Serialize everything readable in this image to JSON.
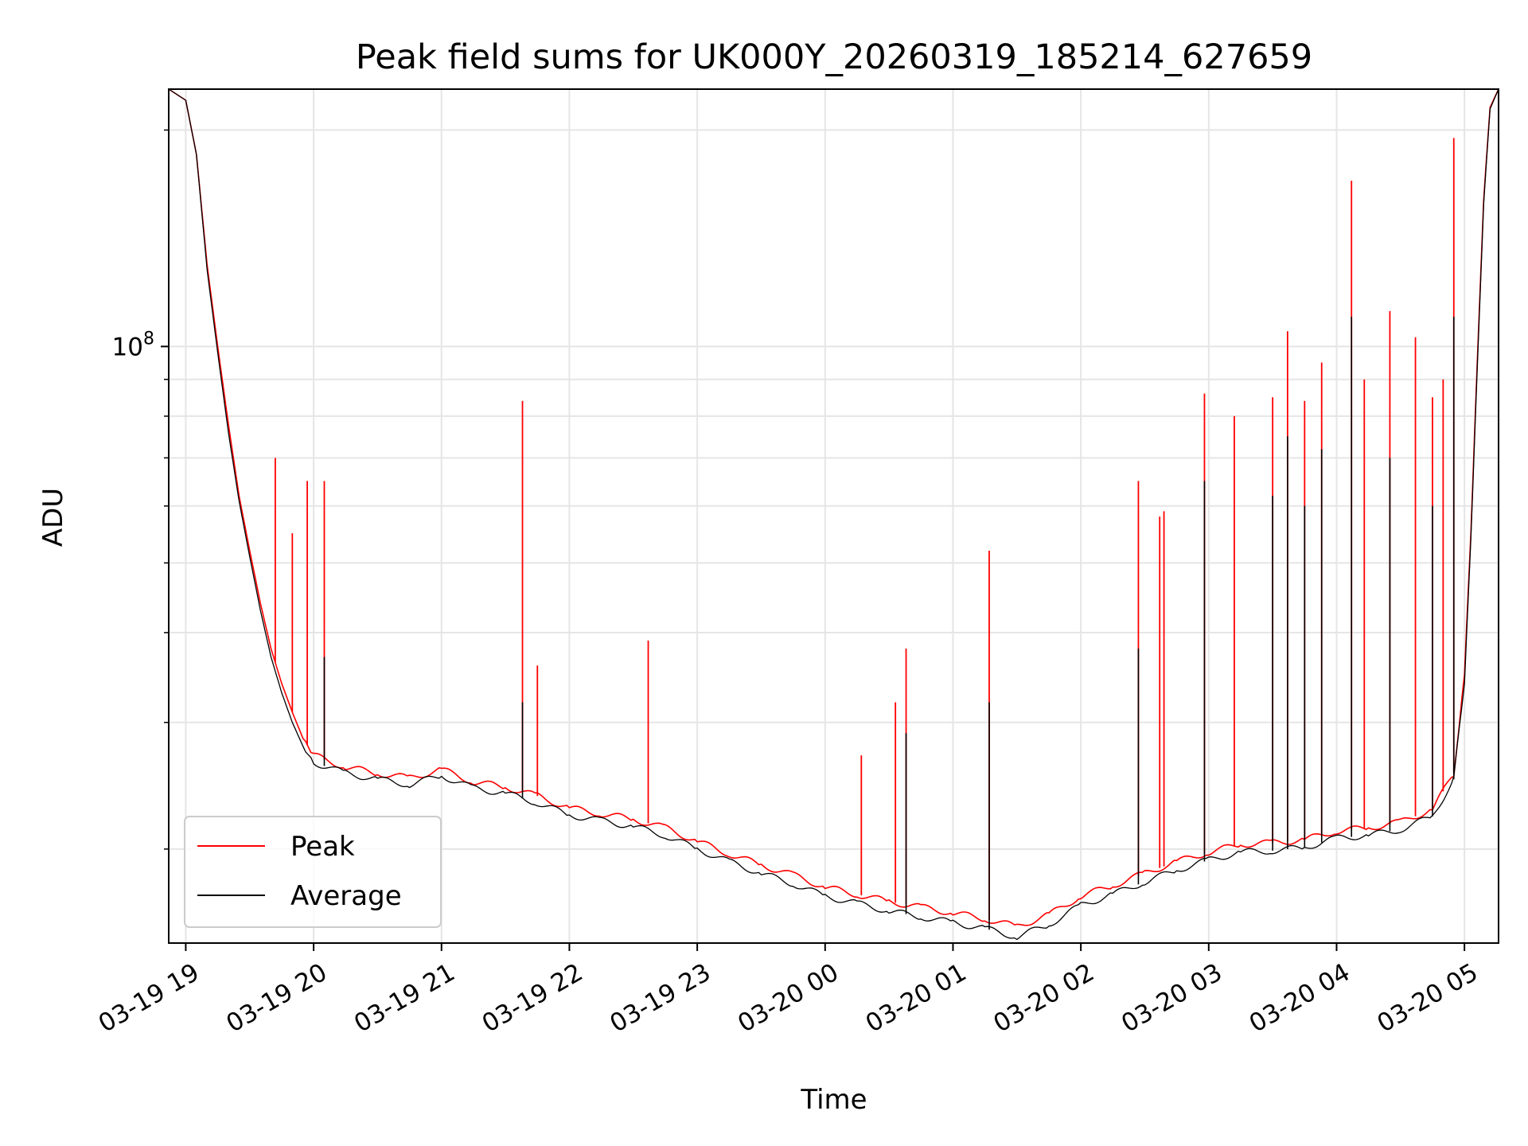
{
  "chart_data": {
    "type": "line",
    "title": "Peak field sums for UK000Y_20260319_185214_627659",
    "xlabel": "Time",
    "ylabel": "ADU",
    "y_scale": "log",
    "ylim": [
      14800000,
      228000000
    ],
    "xlim": [
      "2026-03-19 18:52",
      "2026-03-20 05:16"
    ],
    "x_tick_labels": [
      "03-19 19",
      "03-19 20",
      "03-19 21",
      "03-19 22",
      "03-19 23",
      "03-20 00",
      "03-20 01",
      "03-20 02",
      "03-20 03",
      "03-20 04",
      "03-20 05"
    ],
    "x_ticks": [
      "2026-03-19 19:00",
      "2026-03-19 20:00",
      "2026-03-19 21:00",
      "2026-03-19 22:00",
      "2026-03-19 23:00",
      "2026-03-20 00:00",
      "2026-03-20 01:00",
      "2026-03-20 02:00",
      "2026-03-20 03:00",
      "2026-03-20 04:00",
      "2026-03-20 05:00"
    ],
    "y_tick_label": "10",
    "y_tick_exponent": "8",
    "y_major_tick_value": 100000000,
    "grid": true,
    "legend": "lower-left",
    "series": [
      {
        "name": "Peak",
        "color": "#ff0000",
        "points": [
          [
            "2026-03-19 18:52",
            228000000
          ],
          [
            "2026-03-19 19:00",
            220000000
          ],
          [
            "2026-03-19 19:05",
            185000000
          ],
          [
            "2026-03-19 19:10",
            130000000
          ],
          [
            "2026-03-19 19:15",
            100000000
          ],
          [
            "2026-03-19 19:20",
            78000000
          ],
          [
            "2026-03-19 19:25",
            62000000
          ],
          [
            "2026-03-19 19:30",
            52000000
          ],
          [
            "2026-03-19 19:35",
            44000000
          ],
          [
            "2026-03-19 19:40",
            38000000
          ],
          [
            "2026-03-19 19:45",
            34000000
          ],
          [
            "2026-03-19 19:50",
            31000000
          ],
          [
            "2026-03-19 19:55",
            28500000
          ],
          [
            "2026-03-19 20:00",
            27000000
          ],
          [
            "2026-03-19 20:15",
            26000000
          ],
          [
            "2026-03-19 20:30",
            25500000
          ],
          [
            "2026-03-19 20:45",
            25100000
          ],
          [
            "2026-03-19 21:00",
            25800000
          ],
          [
            "2026-03-19 21:15",
            24800000
          ],
          [
            "2026-03-19 21:30",
            24400000
          ],
          [
            "2026-03-19 21:45",
            23700000
          ],
          [
            "2026-03-19 22:00",
            22800000
          ],
          [
            "2026-03-19 22:15",
            22400000
          ],
          [
            "2026-03-19 22:30",
            22000000
          ],
          [
            "2026-03-19 22:45",
            21400000
          ],
          [
            "2026-03-19 23:00",
            20500000
          ],
          [
            "2026-03-19 23:15",
            19700000
          ],
          [
            "2026-03-19 23:30",
            19000000
          ],
          [
            "2026-03-19 23:45",
            18400000
          ],
          [
            "2026-03-20 00:00",
            17700000
          ],
          [
            "2026-03-20 00:15",
            17300000
          ],
          [
            "2026-03-20 00:30",
            16900000
          ],
          [
            "2026-03-20 00:45",
            16600000
          ],
          [
            "2026-03-20 01:00",
            16300000
          ],
          [
            "2026-03-20 01:15",
            16000000
          ],
          [
            "2026-03-20 01:30",
            15600000
          ],
          [
            "2026-03-20 01:45",
            16200000
          ],
          [
            "2026-03-20 02:00",
            17200000
          ],
          [
            "2026-03-20 02:15",
            17800000
          ],
          [
            "2026-03-20 02:30",
            18500000
          ],
          [
            "2026-03-20 02:45",
            19200000
          ],
          [
            "2026-03-20 03:00",
            19800000
          ],
          [
            "2026-03-20 03:15",
            20300000
          ],
          [
            "2026-03-20 03:30",
            20400000
          ],
          [
            "2026-03-20 03:45",
            20600000
          ],
          [
            "2026-03-20 04:00",
            21200000
          ],
          [
            "2026-03-20 04:15",
            21400000
          ],
          [
            "2026-03-20 04:30",
            21800000
          ],
          [
            "2026-03-20 04:45",
            22700000
          ],
          [
            "2026-03-20 04:55",
            25500000
          ],
          [
            "2026-03-20 05:00",
            35000000
          ],
          [
            "2026-03-20 05:03",
            55000000
          ],
          [
            "2026-03-20 05:06",
            95000000
          ],
          [
            "2026-03-20 05:09",
            160000000
          ],
          [
            "2026-03-20 05:12",
            215000000
          ],
          [
            "2026-03-20 05:16",
            228000000
          ]
        ],
        "spikes": [
          [
            "2026-03-19 19:42",
            70000000
          ],
          [
            "2026-03-19 19:50",
            55000000
          ],
          [
            "2026-03-19 19:57",
            65000000
          ],
          [
            "2026-03-19 20:05",
            65000000
          ],
          [
            "2026-03-19 21:38",
            84000000
          ],
          [
            "2026-03-19 21:45",
            36000000
          ],
          [
            "2026-03-19 22:37",
            39000000
          ],
          [
            "2026-03-20 00:17",
            27000000
          ],
          [
            "2026-03-20 00:33",
            32000000
          ],
          [
            "2026-03-20 00:38",
            38000000
          ],
          [
            "2026-03-20 01:17",
            52000000
          ],
          [
            "2026-03-20 02:27",
            65000000
          ],
          [
            "2026-03-20 02:37",
            58000000
          ],
          [
            "2026-03-20 02:39",
            59000000
          ],
          [
            "2026-03-20 02:58",
            86000000
          ],
          [
            "2026-03-20 03:12",
            80000000
          ],
          [
            "2026-03-20 03:30",
            85000000
          ],
          [
            "2026-03-20 03:37",
            105000000
          ],
          [
            "2026-03-20 03:45",
            84000000
          ],
          [
            "2026-03-20 03:53",
            95000000
          ],
          [
            "2026-03-20 04:07",
            170000000
          ],
          [
            "2026-03-20 04:13",
            90000000
          ],
          [
            "2026-03-20 04:25",
            112000000
          ],
          [
            "2026-03-20 04:37",
            103000000
          ],
          [
            "2026-03-20 04:45",
            85000000
          ],
          [
            "2026-03-20 04:50",
            90000000
          ],
          [
            "2026-03-20 04:55",
            195000000
          ]
        ]
      },
      {
        "name": "Average",
        "color": "#000000",
        "points": [
          [
            "2026-03-19 18:52",
            228000000
          ],
          [
            "2026-03-19 19:00",
            220000000
          ],
          [
            "2026-03-19 19:05",
            185000000
          ],
          [
            "2026-03-19 19:10",
            128000000
          ],
          [
            "2026-03-19 19:15",
            98000000
          ],
          [
            "2026-03-19 19:20",
            76000000
          ],
          [
            "2026-03-19 19:25",
            61000000
          ],
          [
            "2026-03-19 19:30",
            51000000
          ],
          [
            "2026-03-19 19:35",
            43000000
          ],
          [
            "2026-03-19 19:40",
            37000000
          ],
          [
            "2026-03-19 19:45",
            33000000
          ],
          [
            "2026-03-19 19:50",
            30000000
          ],
          [
            "2026-03-19 19:55",
            27800000
          ],
          [
            "2026-03-19 20:00",
            26400000
          ],
          [
            "2026-03-19 20:15",
            25500000
          ],
          [
            "2026-03-19 20:30",
            25000000
          ],
          [
            "2026-03-19 20:45",
            24600000
          ],
          [
            "2026-03-19 21:00",
            25300000
          ],
          [
            "2026-03-19 21:15",
            24300000
          ],
          [
            "2026-03-19 21:30",
            23900000
          ],
          [
            "2026-03-19 21:45",
            23200000
          ],
          [
            "2026-03-19 22:00",
            22300000
          ],
          [
            "2026-03-19 22:15",
            21900000
          ],
          [
            "2026-03-19 22:30",
            21500000
          ],
          [
            "2026-03-19 22:45",
            20900000
          ],
          [
            "2026-03-19 23:00",
            20000000
          ],
          [
            "2026-03-19 23:15",
            19200000
          ],
          [
            "2026-03-19 23:30",
            18500000
          ],
          [
            "2026-03-19 23:45",
            17900000
          ],
          [
            "2026-03-20 00:00",
            17200000
          ],
          [
            "2026-03-20 00:15",
            16800000
          ],
          [
            "2026-03-20 00:30",
            16400000
          ],
          [
            "2026-03-20 00:45",
            16100000
          ],
          [
            "2026-03-20 01:00",
            15800000
          ],
          [
            "2026-03-20 01:15",
            15500000
          ],
          [
            "2026-03-20 01:30",
            15100000
          ],
          [
            "2026-03-20 01:45",
            15700000
          ],
          [
            "2026-03-20 02:00",
            16700000
          ],
          [
            "2026-03-20 02:15",
            17300000
          ],
          [
            "2026-03-20 02:30",
            18000000
          ],
          [
            "2026-03-20 02:45",
            18700000
          ],
          [
            "2026-03-20 03:00",
            19300000
          ],
          [
            "2026-03-20 03:15",
            19800000
          ],
          [
            "2026-03-20 03:30",
            19900000
          ],
          [
            "2026-03-20 03:45",
            20100000
          ],
          [
            "2026-03-20 04:00",
            20700000
          ],
          [
            "2026-03-20 04:15",
            20900000
          ],
          [
            "2026-03-20 04:30",
            21300000
          ],
          [
            "2026-03-20 04:45",
            22200000
          ],
          [
            "2026-03-20 04:55",
            25000000
          ],
          [
            "2026-03-20 05:00",
            34000000
          ],
          [
            "2026-03-20 05:03",
            54000000
          ],
          [
            "2026-03-20 05:06",
            93000000
          ],
          [
            "2026-03-20 05:09",
            158000000
          ],
          [
            "2026-03-20 05:12",
            214000000
          ],
          [
            "2026-03-20 05:16",
            228000000
          ]
        ],
        "spikes": [
          [
            "2026-03-19 20:05",
            37000000
          ],
          [
            "2026-03-19 21:38",
            32000000
          ],
          [
            "2026-03-20 00:38",
            29000000
          ],
          [
            "2026-03-20 01:17",
            32000000
          ],
          [
            "2026-03-20 02:27",
            38000000
          ],
          [
            "2026-03-20 02:58",
            65000000
          ],
          [
            "2026-03-20 03:30",
            62000000
          ],
          [
            "2026-03-20 03:37",
            75000000
          ],
          [
            "2026-03-20 03:45",
            60000000
          ],
          [
            "2026-03-20 03:53",
            72000000
          ],
          [
            "2026-03-20 04:07",
            110000000
          ],
          [
            "2026-03-20 04:25",
            70000000
          ],
          [
            "2026-03-20 04:45",
            60000000
          ],
          [
            "2026-03-20 04:55",
            110000000
          ]
        ]
      }
    ]
  }
}
